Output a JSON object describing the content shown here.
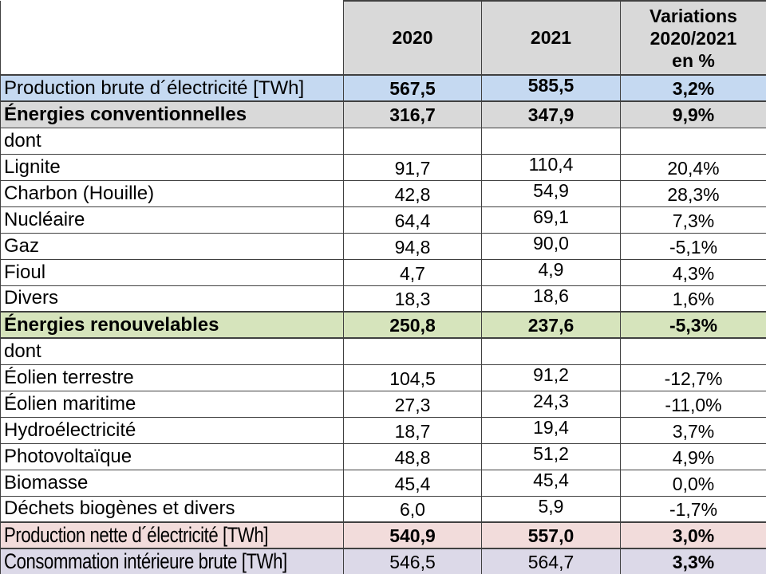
{
  "colors": {
    "header_bg": "#d9d9d9",
    "row_blue": "#c5d9f1",
    "row_gray": "#d9d9d9",
    "row_green": "#d6e4bc",
    "row_pink": "#f2dcdb",
    "row_lavender": "#dcd9e8",
    "border": "#404040",
    "text": "#000000"
  },
  "table": {
    "header": {
      "corner": "",
      "year_2020": "2020",
      "year_2021": "2021",
      "variations": "Variations\n2020/2021\nen %"
    },
    "rows": [
      {
        "label": "Production brute d´électricité [TWh]",
        "y2020": "567,5",
        "y2021": "585,5",
        "variation": "3,2%",
        "style": "blue",
        "emphasis": "values-bold"
      },
      {
        "label": "Énergies conventionnelles",
        "y2020": "316,7",
        "y2021": "347,9",
        "variation": "9,9%",
        "style": "gray",
        "emphasis": "all-bold"
      },
      {
        "label": "dont",
        "y2020": "",
        "y2021": "",
        "variation": "",
        "style": "white",
        "emphasis": "none"
      },
      {
        "label": "Lignite",
        "y2020": "91,7",
        "y2021": "110,4",
        "variation": "20,4%",
        "style": "white",
        "emphasis": "none"
      },
      {
        "label": "Charbon (Houille)",
        "y2020": "42,8",
        "y2021": "54,9",
        "variation": "28,3%",
        "style": "white",
        "emphasis": "none"
      },
      {
        "label": "Nucléaire",
        "y2020": "64,4",
        "y2021": "69,1",
        "variation": "7,3%",
        "style": "white",
        "emphasis": "none"
      },
      {
        "label": "Gaz",
        "y2020": "94,8",
        "y2021": "90,0",
        "variation": "-5,1%",
        "style": "white",
        "emphasis": "none"
      },
      {
        "label": "Fioul",
        "y2020": "4,7",
        "y2021": "4,9",
        "variation": "4,3%",
        "style": "white",
        "emphasis": "none"
      },
      {
        "label": "Divers",
        "y2020": "18,3",
        "y2021": "18,6",
        "variation": "1,6%",
        "style": "white",
        "emphasis": "none"
      },
      {
        "label": "Énergies renouvelables",
        "y2020": "250,8",
        "y2021": "237,6",
        "variation": "-5,3%",
        "style": "green",
        "emphasis": "all-bold"
      },
      {
        "label": "dont",
        "y2020": "",
        "y2021": "",
        "variation": "",
        "style": "white",
        "emphasis": "none"
      },
      {
        "label": "Éolien terrestre",
        "y2020": "104,5",
        "y2021": "91,2",
        "variation": "-12,7%",
        "style": "white",
        "emphasis": "none"
      },
      {
        "label": "Éolien maritime",
        "y2020": "27,3",
        "y2021": "24,3",
        "variation": "-11,0%",
        "style": "white",
        "emphasis": "none"
      },
      {
        "label": "Hydroélectricité",
        "y2020": "18,7",
        "y2021": "19,4",
        "variation": "3,7%",
        "style": "white",
        "emphasis": "none"
      },
      {
        "label": "Photovoltaïque",
        "y2020": "48,8",
        "y2021": "51,2",
        "variation": "4,9%",
        "style": "white",
        "emphasis": "none"
      },
      {
        "label": "Biomasse",
        "y2020": "45,4",
        "y2021": "45,4",
        "variation": "0,0%",
        "style": "white",
        "emphasis": "none"
      },
      {
        "label": "Déchets biogènes et divers",
        "y2020": "6,0",
        "y2021": "5,9",
        "variation": "-1,7%",
        "style": "white",
        "emphasis": "none"
      },
      {
        "label": "Production nette d´électricité [TWh]",
        "y2020": "540,9",
        "y2021": "557,0",
        "variation": "3,0%",
        "style": "pink",
        "emphasis": "values-bold"
      },
      {
        "label": "Consommation intérieure brute [TWh]",
        "y2020": "546,5",
        "y2021": "564,7",
        "variation": "3,3%",
        "style": "lavender",
        "emphasis": "variation-bold"
      }
    ]
  },
  "chart_data": {
    "type": "table",
    "title": "",
    "columns": [
      "",
      "2020",
      "2021",
      "Variations 2020/2021 en %"
    ],
    "rows": [
      [
        "Production brute d´électricité [TWh]",
        "567,5",
        "585,5",
        "3,2%"
      ],
      [
        "Énergies conventionnelles",
        "316,7",
        "347,9",
        "9,9%"
      ],
      [
        "dont",
        "",
        "",
        ""
      ],
      [
        "Lignite",
        "91,7",
        "110,4",
        "20,4%"
      ],
      [
        "Charbon (Houille)",
        "42,8",
        "54,9",
        "28,3%"
      ],
      [
        "Nucléaire",
        "64,4",
        "69,1",
        "7,3%"
      ],
      [
        "Gaz",
        "94,8",
        "90,0",
        "-5,1%"
      ],
      [
        "Fioul",
        "4,7",
        "4,9",
        "4,3%"
      ],
      [
        "Divers",
        "18,3",
        "18,6",
        "1,6%"
      ],
      [
        "Énergies renouvelables",
        "250,8",
        "237,6",
        "-5,3%"
      ],
      [
        "dont",
        "",
        "",
        ""
      ],
      [
        "Éolien terrestre",
        "104,5",
        "91,2",
        "-12,7%"
      ],
      [
        "Éolien maritime",
        "27,3",
        "24,3",
        "-11,0%"
      ],
      [
        "Hydroélectricité",
        "18,7",
        "19,4",
        "3,7%"
      ],
      [
        "Photovoltaïque",
        "48,8",
        "51,2",
        "4,9%"
      ],
      [
        "Biomasse",
        "45,4",
        "45,4",
        "0,0%"
      ],
      [
        "Déchets biogènes et divers",
        "6,0",
        "5,9",
        "-1,7%"
      ],
      [
        "Production nette d´électricité [TWh]",
        "540,9",
        "557,0",
        "3,0%"
      ],
      [
        "Consommation intérieure brute [TWh]",
        "546,5",
        "564,7",
        "3,3%"
      ]
    ]
  }
}
